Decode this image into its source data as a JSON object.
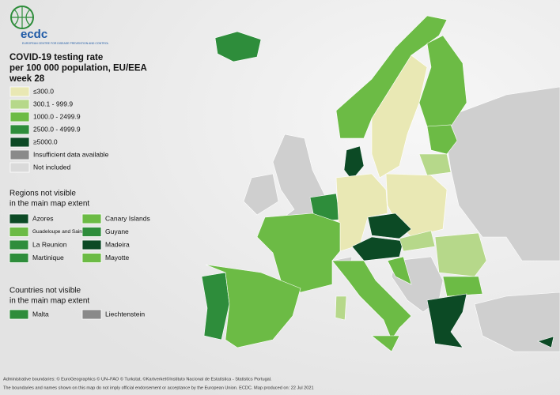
{
  "logo": {
    "text": "ecdc",
    "subtext": "EUROPEAN CENTRE FOR DISEASE PREVENTION AND CONTROL"
  },
  "title": [
    "COVID-19 testing rate",
    "per 100 000 population, EU/EEA",
    "week 28"
  ],
  "legend": [
    {
      "label": "≤300.0",
      "color": "#e9e8b4"
    },
    {
      "label": "300.1 - 999.9",
      "color": "#b6d88a"
    },
    {
      "label": "1000.0 - 2499.9",
      "color": "#6cbb45"
    },
    {
      "label": "2500.0 - 4999.9",
      "color": "#2e8d3b"
    },
    {
      "label": "≥5000.0",
      "color": "#0c4a25"
    },
    {
      "label": "Insufficient data available",
      "color": "#8a8a8a"
    },
    {
      "label": "Not included",
      "color": "#dadada"
    }
  ],
  "regions": {
    "heading": [
      "Regions not visible",
      "in the main map extent"
    ],
    "items": [
      {
        "label": "Azores",
        "color": "#0c4a25"
      },
      {
        "label": "Canary Islands",
        "color": "#6cbb45"
      },
      {
        "label": "Guadeloupe and Saint Martin",
        "color": "#6cbb45"
      },
      {
        "label": "Guyane",
        "color": "#2e8d3b"
      },
      {
        "label": "La Reunion",
        "color": "#2e8d3b"
      },
      {
        "label": "Madeira",
        "color": "#0c4a25"
      },
      {
        "label": "Martinique",
        "color": "#2e8d3b"
      },
      {
        "label": "Mayotte",
        "color": "#6cbb45"
      }
    ]
  },
  "countries": {
    "heading": [
      "Countries not visible",
      "in the main map extent"
    ],
    "items": [
      {
        "label": "Malta",
        "color": "#2e8d3b"
      },
      {
        "label": "Liechtenstein",
        "color": "#8a8a8a"
      }
    ]
  },
  "footer": [
    "Administrative boundaries: © EuroGeographics © UN–FAO © Turkstat. ©Kartverket©Instituto Nacional de Estatística - Statistics Portugal.",
    "The boundaries and names shown on this map do not imply official endorsement or acceptance by the European Union. ECDC. Map produced on: 22 Jul 2021"
  ]
}
